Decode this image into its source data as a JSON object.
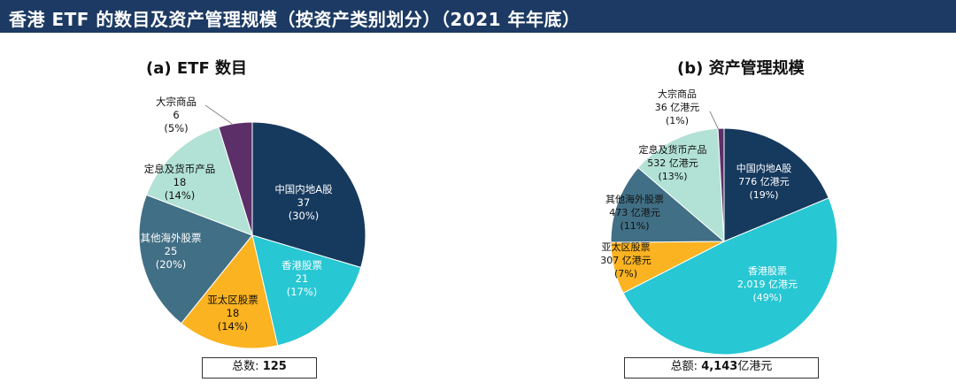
{
  "header": {
    "title": "香港 ETF 的数目及资产管理规模（按资产类别划分）（2021 年年底）"
  },
  "chart_data": [
    {
      "type": "pie",
      "title": "(a) ETF 数目",
      "total_label": "总数:",
      "total_value": "125",
      "slices": [
        {
          "name": "中国内地A股",
          "value": 37,
          "value_text": "37",
          "pct_text": "(30%)",
          "color": "#16395e",
          "text_color": "#ffffff"
        },
        {
          "name": "香港股票",
          "value": 21,
          "value_text": "21",
          "pct_text": "(17%)",
          "color": "#27c7d3",
          "text_color": "#ffffff"
        },
        {
          "name": "亚太区股票",
          "value": 18,
          "value_text": "18",
          "pct_text": "(14%)",
          "color": "#fbb321",
          "text_color": "#111111"
        },
        {
          "name": "其他海外股票",
          "value": 25,
          "value_text": "25",
          "pct_text": "(20%)",
          "color": "#416f85",
          "text_color": "#ffffff"
        },
        {
          "name": "定息及货币产品",
          "value": 18,
          "value_text": "18",
          "pct_text": "(14%)",
          "color": "#b2e2d5",
          "text_color": "#111111"
        },
        {
          "name": "大宗商品",
          "value": 6,
          "value_text": "6",
          "pct_text": "(5%)",
          "color": "#5d2f69",
          "text_color": "#111111"
        }
      ]
    },
    {
      "type": "pie",
      "title": "(b)  资产管理规模",
      "total_label": "总额:",
      "total_value": "4,143",
      "total_unit": "亿港元",
      "slices": [
        {
          "name": "中国内地A股",
          "value": 776,
          "value_text": "776 亿港元",
          "pct_text": "(19%)",
          "color": "#16395e",
          "text_color": "#ffffff"
        },
        {
          "name": "香港股票",
          "value": 2019,
          "value_text": "2,019 亿港元",
          "pct_text": "(49%)",
          "color": "#27c7d3",
          "text_color": "#ffffff"
        },
        {
          "name": "亚太区股票",
          "value": 307,
          "value_text": "307 亿港元",
          "pct_text": "(7%)",
          "color": "#fbb321",
          "text_color": "#111111"
        },
        {
          "name": "其他海外股票",
          "value": 473,
          "value_text": "473 亿港元",
          "pct_text": "(11%)",
          "color": "#416f85",
          "text_color": "#111111"
        },
        {
          "name": "定息及货币产品",
          "value": 532,
          "value_text": "532 亿港元",
          "pct_text": "(13%)",
          "color": "#b2e2d5",
          "text_color": "#111111"
        },
        {
          "name": "大宗商品",
          "value": 36,
          "value_text": "36 亿港元",
          "pct_text": "(1%)",
          "color": "#5d2f69",
          "text_color": "#111111"
        }
      ]
    }
  ]
}
